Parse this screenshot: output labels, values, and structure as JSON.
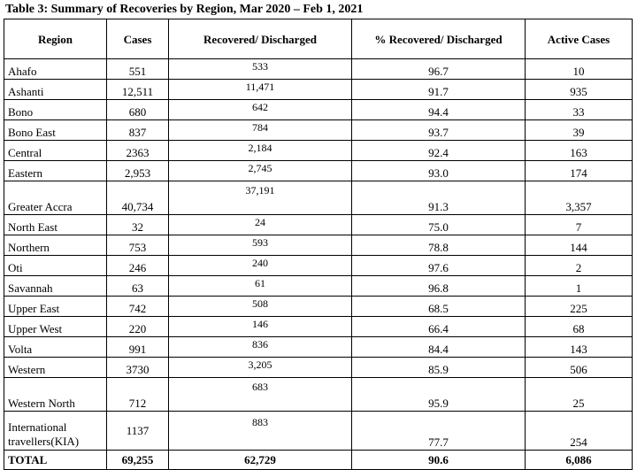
{
  "caption": "Table 3: Summary of Recoveries by Region, Mar 2020 – Feb 1, 2021",
  "headers": {
    "region": "Region",
    "cases": "Cases",
    "recovered": "Recovered/ Discharged",
    "pct": "% Recovered/ Discharged",
    "active": "Active Cases"
  },
  "rows": [
    {
      "region": "Ahafo",
      "cases": "551",
      "recovered": "533",
      "pct": "96.7",
      "active": "10"
    },
    {
      "region": "Ashanti",
      "cases": "12,511",
      "recovered": "11,471",
      "pct": "91.7",
      "active": "935"
    },
    {
      "region": "Bono",
      "cases": "680",
      "recovered": "642",
      "pct": "94.4",
      "active": "33"
    },
    {
      "region": "Bono East",
      "cases": "837",
      "recovered": "784",
      "pct": "93.7",
      "active": "39"
    },
    {
      "region": "Central",
      "cases": "2363",
      "recovered": "2,184",
      "pct": "92.4",
      "active": "163"
    },
    {
      "region": "Eastern",
      "cases": "2,953",
      "recovered": "2,745",
      "pct": "93.0",
      "active": "174"
    },
    {
      "region": "Greater Accra",
      "cases": "40,734",
      "recovered": "37,191",
      "pct": "91.3",
      "active": "3,357"
    },
    {
      "region": "North East",
      "cases": "32",
      "recovered": "24",
      "pct": "75.0",
      "active": "7"
    },
    {
      "region": "Northern",
      "cases": "753",
      "recovered": "593",
      "pct": "78.8",
      "active": "144"
    },
    {
      "region": "Oti",
      "cases": "246",
      "recovered": "240",
      "pct": "97.6",
      "active": "2"
    },
    {
      "region": "Savannah",
      "cases": "63",
      "recovered": "61",
      "pct": "96.8",
      "active": "1"
    },
    {
      "region": "Upper East",
      "cases": "742",
      "recovered": "508",
      "pct": "68.5",
      "active": "225"
    },
    {
      "region": "Upper West",
      "cases": "220",
      "recovered": "146",
      "pct": "66.4",
      "active": "68"
    },
    {
      "region": "Volta",
      "cases": "991",
      "recovered": "836",
      "pct": "84.4",
      "active": "143"
    },
    {
      "region": "Western",
      "cases": "3730",
      "recovered": "3,205",
      "pct": "85.9",
      "active": "506"
    },
    {
      "region": "Western North",
      "cases": "712",
      "recovered": "683",
      "pct": "95.9",
      "active": "25"
    },
    {
      "region": "International travellers(KIA)",
      "cases": "1137",
      "recovered": "883",
      "pct": "77.7",
      "active": "254"
    }
  ],
  "total": {
    "region": "TOTAL",
    "cases": "69,255",
    "recovered": "62,729",
    "pct": "90.6",
    "active": "6,086"
  }
}
